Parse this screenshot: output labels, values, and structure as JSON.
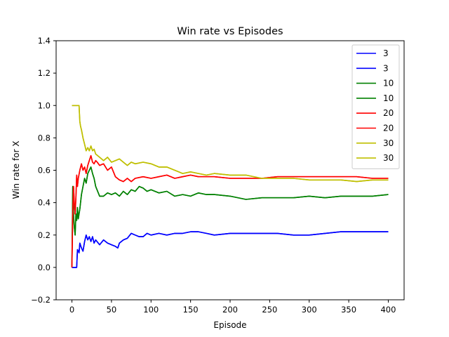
{
  "chart_data": {
    "type": "line",
    "title": "Win rate vs Episodes",
    "xlabel": "Episode",
    "ylabel": "Win rate for X",
    "xlim": [
      -20,
      420
    ],
    "ylim": [
      -0.2,
      1.4
    ],
    "xticks": [
      0,
      50,
      100,
      150,
      200,
      250,
      300,
      350,
      400
    ],
    "yticks": [
      -0.2,
      0.0,
      0.2,
      0.4,
      0.6,
      0.8,
      1.0,
      1.2,
      1.4
    ],
    "ytick_labels": [
      "−0.2",
      "0.0",
      "0.2",
      "0.4",
      "0.6",
      "0.8",
      "1.0",
      "1.2",
      "1.4"
    ],
    "grid": false,
    "legend_position": "top-right",
    "legend": [
      "3",
      "3",
      "10",
      "10",
      "20",
      "20",
      "30",
      "30"
    ],
    "series": [
      {
        "name": "3",
        "color": "#0000ff",
        "x": [
          0,
          3,
          6,
          7,
          9,
          10,
          12,
          14,
          16,
          18,
          20,
          22,
          24,
          26,
          28,
          30,
          35,
          40,
          45,
          50,
          55,
          58,
          60,
          65,
          70,
          75,
          80,
          85,
          90,
          95,
          100,
          110,
          120,
          130,
          140,
          150,
          155,
          160,
          170,
          180,
          200,
          220,
          240,
          260,
          280,
          300,
          320,
          340,
          360,
          380,
          400
        ],
        "y": [
          0.0,
          0.0,
          0.0,
          0.11,
          0.09,
          0.15,
          0.12,
          0.1,
          0.16,
          0.2,
          0.17,
          0.19,
          0.16,
          0.19,
          0.15,
          0.17,
          0.14,
          0.17,
          0.15,
          0.14,
          0.13,
          0.12,
          0.15,
          0.17,
          0.18,
          0.21,
          0.2,
          0.19,
          0.19,
          0.21,
          0.2,
          0.21,
          0.2,
          0.21,
          0.21,
          0.22,
          0.22,
          0.22,
          0.21,
          0.2,
          0.21,
          0.21,
          0.21,
          0.21,
          0.2,
          0.2,
          0.21,
          0.22,
          0.22,
          0.22,
          0.22
        ]
      },
      {
        "name": "10",
        "color": "#008000",
        "x": [
          0,
          1,
          2,
          3,
          4,
          5,
          6,
          7,
          8,
          10,
          12,
          14,
          16,
          18,
          20,
          22,
          24,
          26,
          28,
          30,
          35,
          40,
          45,
          50,
          55,
          60,
          65,
          70,
          75,
          80,
          85,
          90,
          95,
          100,
          110,
          120,
          130,
          140,
          150,
          160,
          170,
          180,
          200,
          220,
          240,
          260,
          280,
          300,
          320,
          340,
          360,
          380,
          400
        ],
        "y": [
          0.0,
          0.5,
          0.33,
          0.25,
          0.2,
          0.33,
          0.29,
          0.37,
          0.3,
          0.36,
          0.45,
          0.5,
          0.55,
          0.52,
          0.58,
          0.6,
          0.62,
          0.58,
          0.55,
          0.5,
          0.44,
          0.44,
          0.46,
          0.45,
          0.46,
          0.44,
          0.47,
          0.45,
          0.48,
          0.47,
          0.5,
          0.49,
          0.47,
          0.48,
          0.46,
          0.47,
          0.44,
          0.45,
          0.44,
          0.46,
          0.45,
          0.45,
          0.44,
          0.42,
          0.43,
          0.43,
          0.43,
          0.44,
          0.43,
          0.44,
          0.44,
          0.44,
          0.45
        ]
      },
      {
        "name": "20",
        "color": "#ff0000",
        "x": [
          0,
          1,
          2,
          3,
          4,
          5,
          6,
          7,
          8,
          10,
          12,
          14,
          16,
          18,
          20,
          22,
          24,
          26,
          28,
          30,
          32,
          35,
          40,
          45,
          50,
          55,
          60,
          65,
          70,
          75,
          80,
          90,
          100,
          110,
          120,
          130,
          140,
          150,
          160,
          170,
          180,
          200,
          220,
          240,
          260,
          280,
          300,
          320,
          340,
          360,
          380,
          400
        ],
        "y": [
          0.0,
          0.33,
          0.5,
          0.4,
          0.33,
          0.43,
          0.57,
          0.5,
          0.55,
          0.6,
          0.64,
          0.6,
          0.62,
          0.58,
          0.63,
          0.66,
          0.69,
          0.65,
          0.64,
          0.66,
          0.65,
          0.63,
          0.64,
          0.6,
          0.62,
          0.56,
          0.54,
          0.53,
          0.55,
          0.53,
          0.55,
          0.56,
          0.55,
          0.56,
          0.57,
          0.55,
          0.56,
          0.57,
          0.56,
          0.56,
          0.56,
          0.55,
          0.55,
          0.55,
          0.56,
          0.56,
          0.56,
          0.56,
          0.56,
          0.56,
          0.55,
          0.55
        ]
      },
      {
        "name": "30",
        "color": "#bfbf00",
        "x": [
          0,
          2,
          4,
          6,
          8,
          9,
          10,
          11,
          12,
          14,
          16,
          18,
          20,
          22,
          24,
          26,
          28,
          30,
          35,
          40,
          45,
          50,
          55,
          60,
          65,
          70,
          75,
          80,
          90,
          100,
          110,
          120,
          130,
          140,
          150,
          160,
          170,
          180,
          200,
          220,
          240,
          260,
          280,
          300,
          320,
          340,
          360,
          380,
          400
        ],
        "y": [
          1.0,
          1.0,
          1.0,
          1.0,
          1.0,
          1.0,
          0.9,
          0.87,
          0.85,
          0.8,
          0.76,
          0.72,
          0.74,
          0.72,
          0.75,
          0.72,
          0.73,
          0.7,
          0.68,
          0.66,
          0.68,
          0.65,
          0.66,
          0.67,
          0.65,
          0.63,
          0.65,
          0.64,
          0.65,
          0.64,
          0.62,
          0.62,
          0.6,
          0.58,
          0.59,
          0.58,
          0.57,
          0.58,
          0.57,
          0.57,
          0.55,
          0.55,
          0.55,
          0.54,
          0.54,
          0.54,
          0.53,
          0.54,
          0.54
        ]
      }
    ]
  }
}
